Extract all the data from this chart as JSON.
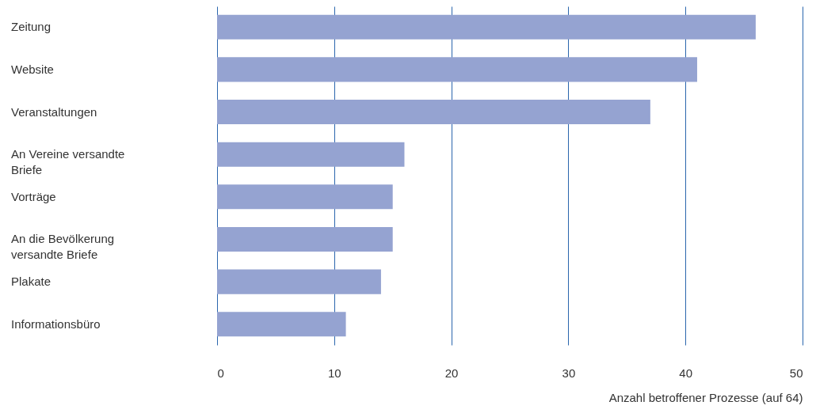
{
  "chart_data": {
    "type": "bar",
    "orientation": "horizontal",
    "xlabel": "Anzahl betroffener Prozesse (auf 64)",
    "categories": [
      "Zeitung",
      "Website",
      "Veranstaltungen",
      "An Vereine versandte Briefe",
      "Vorträge",
      "An die Bevölkerung versandte Briefe",
      "Plakate",
      "Informationsbüro"
    ],
    "values": [
      46,
      41,
      37,
      16,
      15,
      15,
      14,
      11
    ],
    "color": "#95a3d1",
    "xlim": [
      0,
      50
    ],
    "xticks": [
      0,
      10,
      20,
      30,
      40,
      50
    ],
    "grid": "x"
  }
}
